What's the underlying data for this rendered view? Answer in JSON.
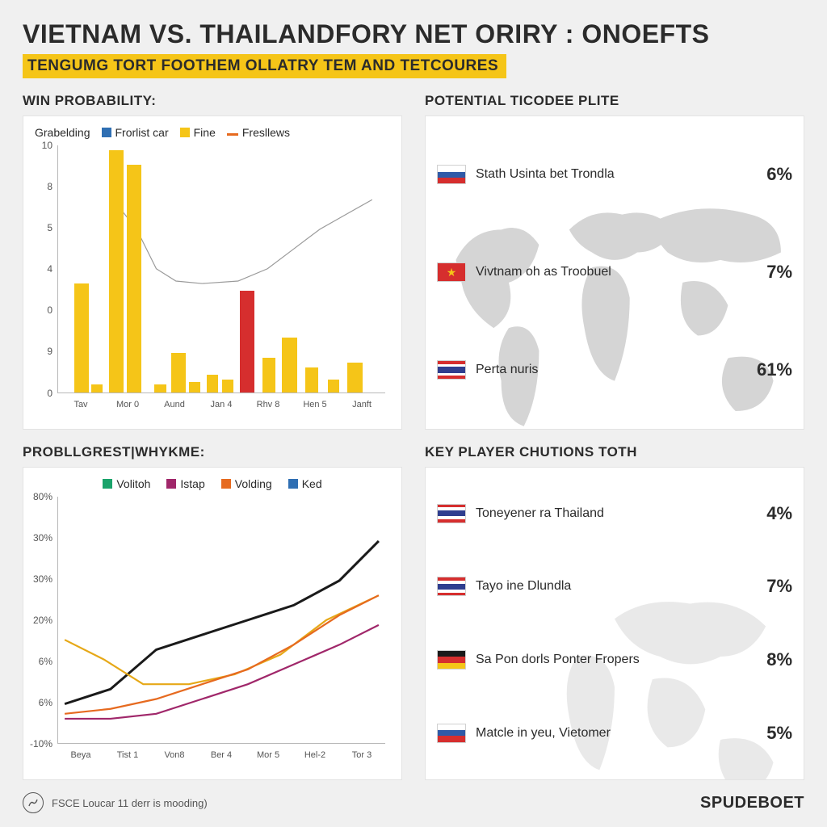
{
  "title": "VIETNAM VS. THAILANDFORY NET ORIRY : ONOEFTS",
  "subtitle": "TENGUMG TORT FOOTHEM OLLATRY TEM AND TETCOURES",
  "panels": {
    "top_left": {
      "title": "WIN PROBABILITY:",
      "type": "bar",
      "legend_lead": "Grabelding",
      "legend": [
        {
          "label": "Frorlist car",
          "color": "#2f6fb3",
          "shape": "square"
        },
        {
          "label": "Fine",
          "color": "#f5c518",
          "shape": "square"
        },
        {
          "label": "Fresllews",
          "color": "#e66a1f",
          "shape": "dash"
        }
      ],
      "y_ticks": [
        "10",
        "8",
        "5",
        "4",
        "0",
        "9",
        "0"
      ],
      "x_labels": [
        "Tav",
        "Mor 0",
        "Aund",
        "Jan 4",
        "Rhv 8",
        "Hen 5",
        "Janft"
      ],
      "bars": [
        {
          "x": 0.05,
          "h": 0.44,
          "w": 0.045,
          "color": "#f5c518"
        },
        {
          "x": 0.1,
          "h": 0.03,
          "w": 0.035,
          "color": "#f5c518"
        },
        {
          "x": 0.155,
          "h": 0.98,
          "w": 0.045,
          "color": "#f5c518"
        },
        {
          "x": 0.21,
          "h": 0.92,
          "w": 0.045,
          "color": "#f5c518"
        },
        {
          "x": 0.295,
          "h": 0.03,
          "w": 0.035,
          "color": "#f5c518"
        },
        {
          "x": 0.345,
          "h": 0.16,
          "w": 0.045,
          "color": "#f5c518"
        },
        {
          "x": 0.4,
          "h": 0.04,
          "w": 0.035,
          "color": "#f5c518"
        },
        {
          "x": 0.455,
          "h": 0.07,
          "w": 0.035,
          "color": "#f5c518"
        },
        {
          "x": 0.5,
          "h": 0.05,
          "w": 0.035,
          "color": "#f5c518"
        },
        {
          "x": 0.555,
          "h": 0.41,
          "w": 0.045,
          "color": "#d62e2e"
        },
        {
          "x": 0.625,
          "h": 0.14,
          "w": 0.04,
          "color": "#f5c518"
        },
        {
          "x": 0.685,
          "h": 0.22,
          "w": 0.045,
          "color": "#f5c518"
        },
        {
          "x": 0.755,
          "h": 0.1,
          "w": 0.04,
          "color": "#f5c518"
        },
        {
          "x": 0.825,
          "h": 0.05,
          "w": 0.035,
          "color": "#f5c518"
        },
        {
          "x": 0.885,
          "h": 0.12,
          "w": 0.045,
          "color": "#f5c518"
        }
      ],
      "line_color": "#9a9a9a",
      "line_points": [
        [
          0.18,
          0.24
        ],
        [
          0.24,
          0.34
        ],
        [
          0.3,
          0.5
        ],
        [
          0.36,
          0.55
        ],
        [
          0.44,
          0.56
        ],
        [
          0.55,
          0.55
        ],
        [
          0.64,
          0.5
        ],
        [
          0.72,
          0.42
        ],
        [
          0.8,
          0.34
        ],
        [
          0.88,
          0.28
        ],
        [
          0.96,
          0.22
        ]
      ]
    },
    "top_right": {
      "title": "POTENTIAL TICODEE PLITE",
      "rows": [
        {
          "flag": "russia",
          "label": "Stath Usinta bet Trondla",
          "value": "6%"
        },
        {
          "flag": "vietnam",
          "label": "Vivtnam oh as Troobuel",
          "value": "7%"
        },
        {
          "flag": "thailand",
          "label": "Perta nuris",
          "value": "61%"
        }
      ]
    },
    "bottom_left": {
      "title": "PROBLLGREST|WHYKME:",
      "type": "line",
      "legend": [
        {
          "label": "Volitoh",
          "color": "#1aa36b",
          "shape": "square"
        },
        {
          "label": "Istap",
          "color": "#a0276a",
          "shape": "square"
        },
        {
          "label": "Volding",
          "color": "#e66a1f",
          "shape": "square"
        },
        {
          "label": "Ked",
          "color": "#2f6fb3",
          "shape": "square"
        }
      ],
      "y_ticks": [
        "80%",
        "30%",
        "30%",
        "20%",
        "6%",
        "6%",
        "-10%"
      ],
      "x_labels": [
        "Beya",
        "Tist 1",
        "Von8",
        "Ber 4",
        "Mor 5",
        "Hel-2",
        "Tor 3"
      ],
      "series": [
        {
          "color": "#1a1a1a",
          "width": 3,
          "points": [
            [
              0.02,
              0.84
            ],
            [
              0.16,
              0.78
            ],
            [
              0.3,
              0.62
            ],
            [
              0.44,
              0.56
            ],
            [
              0.58,
              0.5
            ],
            [
              0.72,
              0.44
            ],
            [
              0.86,
              0.34
            ],
            [
              0.98,
              0.18
            ]
          ]
        },
        {
          "color": "#e6a817",
          "width": 2.2,
          "points": [
            [
              0.02,
              0.58
            ],
            [
              0.14,
              0.66
            ],
            [
              0.26,
              0.76
            ],
            [
              0.4,
              0.76
            ],
            [
              0.54,
              0.72
            ],
            [
              0.68,
              0.64
            ],
            [
              0.82,
              0.5
            ],
            [
              0.98,
              0.4
            ]
          ]
        },
        {
          "color": "#e66a1f",
          "width": 2.2,
          "points": [
            [
              0.02,
              0.88
            ],
            [
              0.16,
              0.86
            ],
            [
              0.3,
              0.82
            ],
            [
              0.44,
              0.76
            ],
            [
              0.58,
              0.7
            ],
            [
              0.72,
              0.6
            ],
            [
              0.86,
              0.48
            ],
            [
              0.98,
              0.4
            ]
          ]
        },
        {
          "color": "#a0276a",
          "width": 2.2,
          "points": [
            [
              0.02,
              0.9
            ],
            [
              0.16,
              0.9
            ],
            [
              0.3,
              0.88
            ],
            [
              0.44,
              0.82
            ],
            [
              0.58,
              0.76
            ],
            [
              0.72,
              0.68
            ],
            [
              0.86,
              0.6
            ],
            [
              0.98,
              0.52
            ]
          ]
        }
      ]
    },
    "bottom_right": {
      "title": "KEY PLAYER CHUTIONS TOTH",
      "rows": [
        {
          "flag": "thailand",
          "label": "Toneyener ra Thailand",
          "value": "4%"
        },
        {
          "flag": "thailand",
          "label": "Tayo ine Dlundla",
          "value": "7%"
        },
        {
          "flag": "germany",
          "label": "Sa Pon dorls Ponter Fropers",
          "value": "8%"
        },
        {
          "flag": "russia",
          "label": "Matcle in yeu, Vietomer",
          "value": "5%"
        }
      ]
    }
  },
  "footer": {
    "text": "FSCE  Loucar 11 derr is mooding)",
    "brand": "SPUDEBOET"
  },
  "colors": {
    "bg": "#f0f0f0",
    "card": "#ffffff",
    "border": "#e3e3e3",
    "text": "#2b2b2b",
    "map": "#d5d5d5",
    "highlight": "#f5c518"
  },
  "flags": {
    "russia": [
      "#ffffff",
      "#2f5aa8",
      "#d62e2e"
    ],
    "vietnam": {
      "bg": "#d62e2e",
      "star": "#f5c518"
    },
    "thailand": [
      "#d62e2e",
      "#ffffff",
      "#2f3e8f",
      "#ffffff",
      "#d62e2e"
    ],
    "germany": [
      "#1a1a1a",
      "#d62e2e",
      "#f5c518"
    ]
  }
}
